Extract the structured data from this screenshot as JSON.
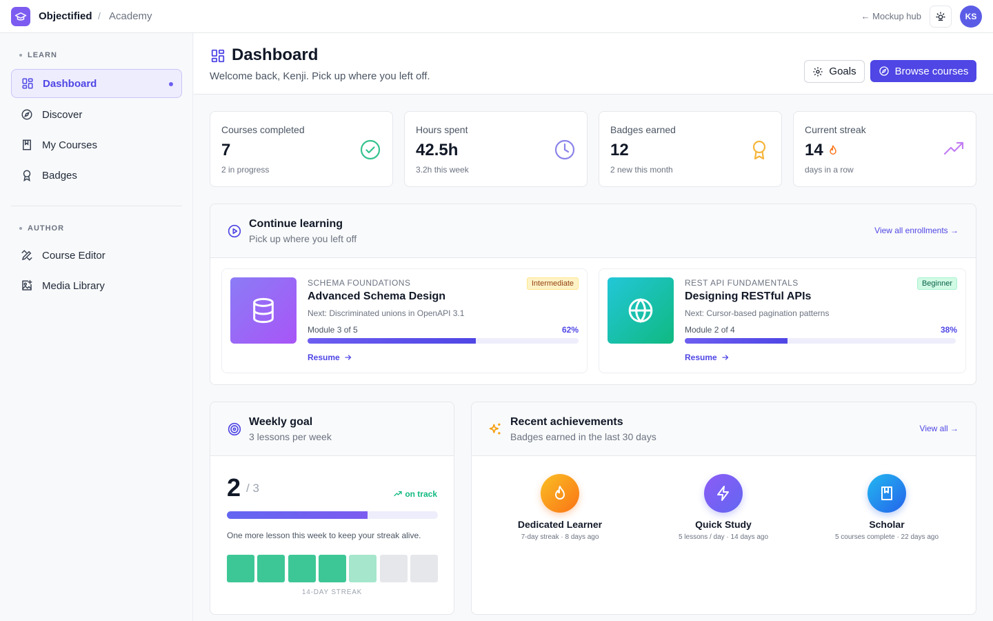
{
  "topbar": {
    "brand": "Objectified",
    "separator": "/",
    "crumb": "Academy",
    "hub_link": "← Mockup hub",
    "avatar_initials": "KS"
  },
  "sidebar": {
    "learn_label": "LEARN",
    "author_label": "AUTHOR",
    "learn_items": [
      {
        "label": "Dashboard",
        "icon": "dashboard-icon",
        "active": true
      },
      {
        "label": "Discover",
        "icon": "compass-icon"
      },
      {
        "label": "My Courses",
        "icon": "book-icon"
      },
      {
        "label": "Badges",
        "icon": "badge-icon"
      }
    ],
    "author_items": [
      {
        "label": "Course Editor",
        "icon": "editor-icon"
      },
      {
        "label": "Media Library",
        "icon": "media-icon"
      }
    ]
  },
  "header": {
    "title": "Dashboard",
    "subtitle": "Welcome back, Kenji. Pick up where you left off.",
    "goals_label": "Goals",
    "browse_label": "Browse courses"
  },
  "stats": [
    {
      "label": "Courses completed",
      "value": "7",
      "sub": "2 in progress",
      "icon": "check-circle-icon"
    },
    {
      "label": "Hours spent",
      "value": "42.5h",
      "sub": "3.2h this week",
      "icon": "clock-icon"
    },
    {
      "label": "Badges earned",
      "value": "12",
      "sub": "2 new this month",
      "icon": "award-icon"
    },
    {
      "label": "Current streak",
      "value": "14",
      "sub": "days in a row",
      "icon": "trending-up-icon"
    }
  ],
  "continue": {
    "title": "Continue learning",
    "subtitle": "Pick up where you left off",
    "link": "View all enrollments →",
    "courses": [
      {
        "category": "SCHEMA FOUNDATIONS",
        "title": "Advanced Schema Design",
        "next": "Next: Discriminated unions in OpenAPI 3.1",
        "module": "Module 3 of 5",
        "percent_label": "62%",
        "progress": 0.62,
        "level": "Intermediate",
        "resume": "Resume"
      },
      {
        "category": "REST API FUNDAMENTALS",
        "title": "Designing RESTful APIs",
        "next": "Next: Cursor-based pagination patterns",
        "module": "Module 2 of 4",
        "percent_label": "38%",
        "progress": 0.38,
        "level": "Beginner",
        "resume": "Resume"
      }
    ]
  },
  "weekly": {
    "title": "Weekly goal",
    "subtitle": "3 lessons per week",
    "done": "2",
    "total": "/ 3",
    "status": "on track",
    "progress": 0.667,
    "message": "One more lesson this week to keep your streak alive.",
    "streak_label": "14-DAY STREAK",
    "streak_days": [
      "done",
      "done",
      "done",
      "done",
      "partial",
      "empty",
      "empty"
    ]
  },
  "achievements": {
    "title": "Recent achievements",
    "subtitle": "Badges earned in the last 30 days",
    "link": "View all →",
    "items": [
      {
        "name": "Dedicated Learner",
        "desc": "7-day streak · 8 days ago",
        "icon": "flame-icon"
      },
      {
        "name": "Quick Study",
        "desc": "5 lessons / day · 14 days ago",
        "icon": "lightning-icon"
      },
      {
        "name": "Scholar",
        "desc": "5 courses complete · 22 days ago",
        "icon": "book-icon"
      }
    ]
  },
  "colors": {
    "accent": "#4f46e5",
    "streak_done": "#3ec796",
    "streak_partial": "#a5e6cc",
    "streak_empty": "#e5e7eb"
  }
}
